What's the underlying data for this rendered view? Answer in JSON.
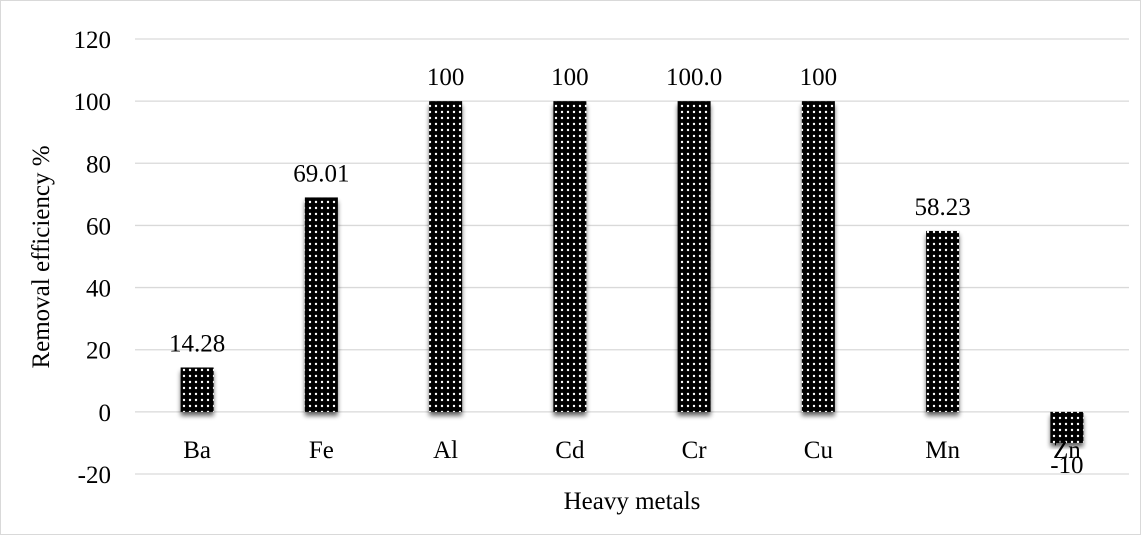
{
  "chart_data": {
    "type": "bar",
    "categories": [
      "Ba",
      "Fe",
      "Al",
      "Cd",
      "Cr",
      "Cu",
      "Mn",
      "Zn"
    ],
    "values": [
      14.28,
      69.01,
      100,
      100,
      100,
      100,
      58.23,
      -10
    ],
    "data_labels": [
      "14.28",
      "69.01",
      "100",
      "100",
      "100.0",
      "100",
      "58.23",
      "-10"
    ],
    "title": "",
    "xlabel": "Heavy metals",
    "ylabel": "Removal efficiency %",
    "ylim": [
      -20,
      120
    ],
    "yticks": [
      -20,
      0,
      20,
      40,
      60,
      80,
      100,
      120
    ],
    "grid": true,
    "bar_fill": "dotted black pattern with white dots",
    "colors": {
      "bar": "#000000",
      "bar_dots": "#ffffff",
      "gridline": "#d9d9d9",
      "text": "#000000"
    }
  }
}
